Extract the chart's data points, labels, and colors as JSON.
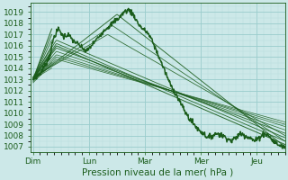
{
  "title": "",
  "xlabel": "Pression niveau de la mer( hPa )",
  "bg_color": "#cce8e8",
  "grid_color_major": "#99cccc",
  "grid_color_minor": "#b8dddd",
  "line_color": "#1a5c1a",
  "ylim": [
    1006.5,
    1019.8
  ],
  "yticks": [
    1007,
    1008,
    1009,
    1010,
    1011,
    1012,
    1013,
    1014,
    1015,
    1016,
    1017,
    1018,
    1019
  ],
  "xtick_labels": [
    "Dim",
    "Lun",
    "Mar",
    "Mer",
    "Jeu"
  ],
  "xtick_positions": [
    0,
    24,
    48,
    72,
    96
  ],
  "xlim": [
    -1,
    108
  ],
  "xlabel_fontsize": 7.5,
  "tick_fontsize": 6.5
}
